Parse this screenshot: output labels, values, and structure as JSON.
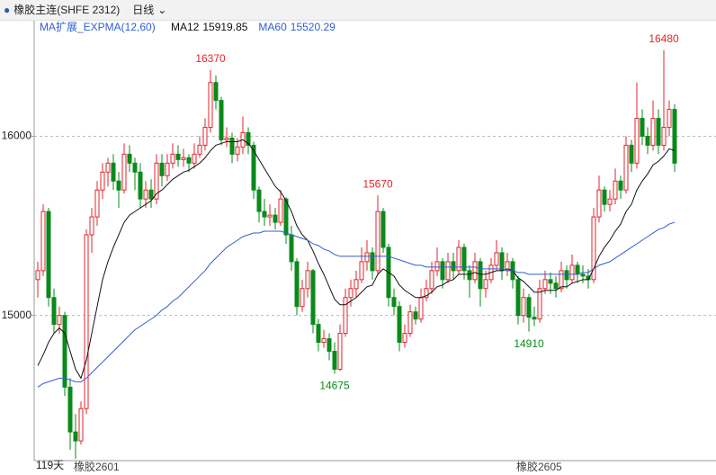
{
  "header": {
    "symbol": "橡胶主连(SHFE 2312)",
    "period": "日线",
    "indicator": "MA扩展_EXPMA(12,60)"
  },
  "footer": {
    "span": "119天",
    "contracts": [
      "橡胶2601",
      "橡胶2605"
    ]
  },
  "chart_data": {
    "type": "candlestick",
    "up_color": "#e0262c",
    "down_color": "#0a8a1a",
    "ylim": [
      14200,
      16650
    ],
    "yticks": [
      15000,
      16000
    ],
    "grid": true,
    "annotations": [
      16370,
      15670,
      14675,
      14910,
      16480
    ],
    "candles": [
      [
        15200,
        15300,
        15100,
        15250
      ],
      [
        15250,
        15620,
        15220,
        15580
      ],
      [
        15580,
        15600,
        15050,
        15100
      ],
      [
        15100,
        15150,
        14900,
        14950
      ],
      [
        14950,
        15050,
        14900,
        15000
      ],
      [
        15000,
        15020,
        14550,
        14600
      ],
      [
        14600,
        14650,
        14250,
        14350
      ],
      [
        14350,
        14450,
        14200,
        14300
      ],
      [
        14300,
        14520,
        14280,
        14480
      ],
      [
        14480,
        15480,
        14450,
        15450
      ],
      [
        15450,
        15600,
        15350,
        15550
      ],
      [
        15550,
        15750,
        15500,
        15700
      ],
      [
        15700,
        15850,
        15650,
        15800
      ],
      [
        15800,
        15880,
        15720,
        15850
      ],
      [
        15850,
        15900,
        15700,
        15750
      ],
      [
        15750,
        15800,
        15600,
        15700
      ],
      [
        15700,
        15960,
        15680,
        15900
      ],
      [
        15900,
        15950,
        15800,
        15850
      ],
      [
        15850,
        15880,
        15700,
        15800
      ],
      [
        15800,
        15850,
        15600,
        15650
      ],
      [
        15650,
        15750,
        15600,
        15700
      ],
      [
        15700,
        15760,
        15600,
        15650
      ],
      [
        15650,
        15900,
        15620,
        15850
      ],
      [
        15850,
        15900,
        15720,
        15780
      ],
      [
        15780,
        15900,
        15750,
        15850
      ],
      [
        15850,
        15960,
        15820,
        15900
      ],
      [
        15900,
        15950,
        15830,
        15870
      ],
      [
        15870,
        15930,
        15830,
        15880
      ],
      [
        15880,
        15900,
        15800,
        15850
      ],
      [
        15850,
        15960,
        15820,
        15900
      ],
      [
        15900,
        16000,
        15880,
        15950
      ],
      [
        15950,
        16100,
        15920,
        16050
      ],
      [
        16050,
        16370,
        16020,
        16300
      ],
      [
        16300,
        16340,
        16150,
        16200
      ],
      [
        16200,
        16220,
        15950,
        15980
      ],
      [
        15980,
        16050,
        15940,
        15990
      ],
      [
        15990,
        16020,
        15850,
        15900
      ],
      [
        15900,
        15990,
        15860,
        15940
      ],
      [
        15940,
        16110,
        15900,
        16020
      ],
      [
        16020,
        16050,
        15900,
        15950
      ],
      [
        15950,
        15970,
        15650,
        15700
      ],
      [
        15700,
        15720,
        15520,
        15580
      ],
      [
        15580,
        15650,
        15500,
        15550
      ],
      [
        15550,
        15620,
        15500,
        15560
      ],
      [
        15560,
        15600,
        15480,
        15520
      ],
      [
        15520,
        15700,
        15500,
        15650
      ],
      [
        15650,
        15660,
        15400,
        15450
      ],
      [
        15450,
        15500,
        15250,
        15300
      ],
      [
        15300,
        15320,
        15000,
        15050
      ],
      [
        15050,
        15200,
        15020,
        15150
      ],
      [
        15150,
        15300,
        15100,
        15250
      ],
      [
        15250,
        15260,
        14900,
        14950
      ],
      [
        14950,
        14980,
        14800,
        14850
      ],
      [
        14850,
        14920,
        14820,
        14870
      ],
      [
        14870,
        14900,
        14750,
        14800
      ],
      [
        14800,
        14850,
        14675,
        14700
      ],
      [
        14700,
        14950,
        14690,
        14900
      ],
      [
        14900,
        15150,
        14880,
        15100
      ],
      [
        15100,
        15200,
        15050,
        15150
      ],
      [
        15150,
        15250,
        15100,
        15200
      ],
      [
        15200,
        15380,
        15180,
        15300
      ],
      [
        15300,
        15420,
        15250,
        15350
      ],
      [
        15350,
        15380,
        15200,
        15250
      ],
      [
        15250,
        15670,
        15230,
        15580
      ],
      [
        15580,
        15600,
        15350,
        15380
      ],
      [
        15380,
        15400,
        15050,
        15100
      ],
      [
        15100,
        15150,
        15000,
        15050
      ],
      [
        15050,
        15080,
        14800,
        14850
      ],
      [
        14850,
        14950,
        14820,
        14900
      ],
      [
        14900,
        15060,
        14880,
        15020
      ],
      [
        15020,
        15050,
        14950,
        14980
      ],
      [
        14980,
        15150,
        14960,
        15100
      ],
      [
        15100,
        15200,
        15080,
        15150
      ],
      [
        15150,
        15300,
        15120,
        15250
      ],
      [
        15250,
        15380,
        15220,
        15300
      ],
      [
        15300,
        15320,
        15150,
        15200
      ],
      [
        15200,
        15350,
        15180,
        15300
      ],
      [
        15300,
        15350,
        15200,
        15250
      ],
      [
        15250,
        15420,
        15230,
        15380
      ],
      [
        15380,
        15400,
        15200,
        15250
      ],
      [
        15250,
        15280,
        15100,
        15200
      ],
      [
        15200,
        15350,
        15180,
        15300
      ],
      [
        15300,
        15320,
        15050,
        15150
      ],
      [
        15150,
        15250,
        15100,
        15200
      ],
      [
        15200,
        15320,
        15180,
        15280
      ],
      [
        15280,
        15420,
        15250,
        15350
      ],
      [
        15350,
        15380,
        15200,
        15250
      ],
      [
        15250,
        15350,
        15220,
        15300
      ],
      [
        15300,
        15320,
        15150,
        15200
      ],
      [
        15200,
        15220,
        14950,
        15000
      ],
      [
        15000,
        15150,
        14960,
        15100
      ],
      [
        15100,
        15120,
        14910,
        14990
      ],
      [
        14990,
        15050,
        14940,
        14980
      ],
      [
        14980,
        15200,
        14960,
        15150
      ],
      [
        15150,
        15250,
        15120,
        15200
      ],
      [
        15200,
        15240,
        15120,
        15180
      ],
      [
        15180,
        15220,
        15100,
        15150
      ],
      [
        15150,
        15300,
        15130,
        15250
      ],
      [
        15250,
        15280,
        15150,
        15200
      ],
      [
        15200,
        15340,
        15180,
        15280
      ],
      [
        15280,
        15300,
        15180,
        15230
      ],
      [
        15230,
        15280,
        15180,
        15220
      ],
      [
        15220,
        15260,
        15150,
        15200
      ],
      [
        15200,
        15600,
        15180,
        15550
      ],
      [
        15550,
        15780,
        15520,
        15700
      ],
      [
        15700,
        15720,
        15580,
        15620
      ],
      [
        15620,
        15700,
        15580,
        15650
      ],
      [
        15650,
        15820,
        15620,
        15750
      ],
      [
        15750,
        15780,
        15650,
        15700
      ],
      [
        15700,
        16000,
        15680,
        15950
      ],
      [
        15950,
        15980,
        15800,
        15850
      ],
      [
        15850,
        16300,
        15820,
        16100
      ],
      [
        16100,
        16150,
        15950,
        16000
      ],
      [
        16000,
        16050,
        15900,
        15950
      ],
      [
        15950,
        16200,
        15920,
        16100
      ],
      [
        16100,
        16150,
        15900,
        15950
      ],
      [
        15950,
        16480,
        15920,
        16050
      ],
      [
        16050,
        16200,
        16000,
        16150
      ],
      [
        16150,
        16180,
        15800,
        15850
      ]
    ],
    "series": [
      {
        "name": "MA12",
        "last": 15919.85,
        "color": "#111111",
        "values": [
          14720,
          14780,
          14850,
          14900,
          14930,
          14900,
          14800,
          14700,
          14650,
          14750,
          14900,
          15050,
          15200,
          15300,
          15380,
          15450,
          15520,
          15560,
          15580,
          15600,
          15620,
          15640,
          15680,
          15700,
          15730,
          15760,
          15780,
          15800,
          15810,
          15830,
          15850,
          15880,
          15920,
          15950,
          15960,
          15970,
          15970,
          15970,
          15980,
          15960,
          15920,
          15870,
          15820,
          15770,
          15720,
          15690,
          15640,
          15580,
          15500,
          15450,
          15420,
          15360,
          15290,
          15230,
          15160,
          15090,
          15060,
          15060,
          15080,
          15100,
          15130,
          15160,
          15170,
          15230,
          15260,
          15240,
          15220,
          15170,
          15140,
          15120,
          15100,
          15100,
          15110,
          15130,
          15160,
          15170,
          15190,
          15200,
          15230,
          15230,
          15230,
          15240,
          15230,
          15230,
          15240,
          15250,
          15250,
          15260,
          15250,
          15210,
          15190,
          15160,
          15130,
          15130,
          15140,
          15140,
          15140,
          15160,
          15160,
          15180,
          15190,
          15200,
          15200,
          15260,
          15330,
          15380,
          15420,
          15470,
          15510,
          15580,
          15620,
          15700,
          15750,
          15790,
          15840,
          15860,
          15890,
          15930,
          15920
        ]
      },
      {
        "name": "MA60",
        "last": 15520.29,
        "color": "#2f5fd0",
        "values": [
          14600,
          14620,
          14630,
          14640,
          14650,
          14650,
          14640,
          14630,
          14630,
          14650,
          14680,
          14710,
          14740,
          14770,
          14800,
          14830,
          14860,
          14890,
          14920,
          14940,
          14960,
          14980,
          15000,
          15030,
          15050,
          15080,
          15100,
          15130,
          15160,
          15190,
          15220,
          15250,
          15290,
          15320,
          15350,
          15380,
          15400,
          15420,
          15440,
          15450,
          15460,
          15460,
          15470,
          15470,
          15470,
          15470,
          15460,
          15450,
          15440,
          15430,
          15420,
          15400,
          15390,
          15370,
          15360,
          15340,
          15330,
          15330,
          15330,
          15330,
          15330,
          15330,
          15330,
          15330,
          15330,
          15330,
          15320,
          15310,
          15300,
          15290,
          15280,
          15280,
          15270,
          15270,
          15270,
          15270,
          15270,
          15270,
          15270,
          15270,
          15270,
          15270,
          15260,
          15260,
          15260,
          15260,
          15260,
          15250,
          15250,
          15240,
          15240,
          15230,
          15230,
          15230,
          15230,
          15230,
          15230,
          15230,
          15230,
          15230,
          15230,
          15240,
          15240,
          15260,
          15280,
          15290,
          15300,
          15320,
          15340,
          15360,
          15380,
          15400,
          15420,
          15440,
          15460,
          15480,
          15490,
          15510,
          15520
        ]
      }
    ]
  }
}
